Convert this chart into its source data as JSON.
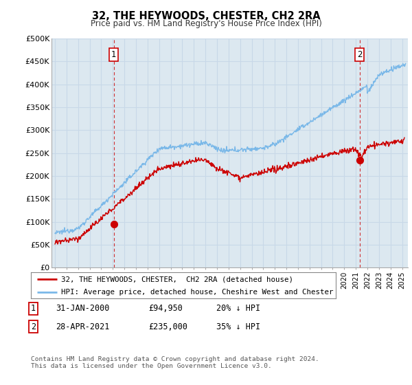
{
  "title": "32, THE HEYWOODS, CHESTER, CH2 2RA",
  "subtitle": "Price paid vs. HM Land Registry's House Price Index (HPI)",
  "ylabel_ticks": [
    "£0",
    "£50K",
    "£100K",
    "£150K",
    "£200K",
    "£250K",
    "£300K",
    "£350K",
    "£400K",
    "£450K",
    "£500K"
  ],
  "ylim": [
    0,
    500000
  ],
  "xlim_start": 1994.7,
  "xlim_end": 2025.5,
  "sale1_date": 2000.08,
  "sale1_price": 94950,
  "sale1_label": "1",
  "sale2_date": 2021.32,
  "sale2_price": 235000,
  "sale2_label": "2",
  "hpi_color": "#7ab8e8",
  "sale_color": "#cc0000",
  "vline_color": "#cc0000",
  "grid_color": "#c8d8e8",
  "bg_color": "#dce8f0",
  "panel_bg": "#dce8f0",
  "background_color": "#ffffff",
  "legend_label_sale": "32, THE HEYWOODS, CHESTER,  CH2 2RA (detached house)",
  "legend_label_hpi": "HPI: Average price, detached house, Cheshire West and Chester",
  "table_row1": [
    "1",
    "31-JAN-2000",
    "£94,950",
    "20% ↓ HPI"
  ],
  "table_row2": [
    "2",
    "28-APR-2021",
    "£235,000",
    "35% ↓ HPI"
  ],
  "footnote": "Contains HM Land Registry data © Crown copyright and database right 2024.\nThis data is licensed under the Open Government Licence v3.0."
}
